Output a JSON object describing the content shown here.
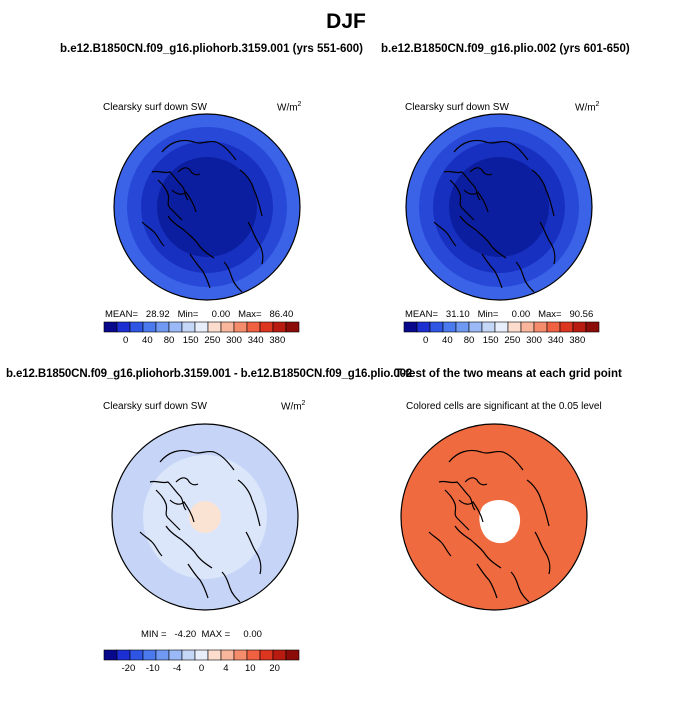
{
  "title": "DJF",
  "panels": [
    {
      "title": "b.e12.B1850CN.f09_g16.pliohorb.3159.001 (yrs 551-600)",
      "variable": "Clearsky surf down SW",
      "units_base": "W/m",
      "units_exp": "2",
      "stats": "MEAN=   28.92   Min=     0.00   Max=   86.40",
      "colorbar_ticks": [
        "0",
        "40",
        "80",
        "150",
        "250",
        "300",
        "340",
        "380"
      ]
    },
    {
      "title": "b.e12.B1850CN.f09_g16.plio.002 (yrs 601-650)",
      "variable": "Clearsky surf down SW",
      "units_base": "W/m",
      "units_exp": "2",
      "stats": "MEAN=   31.10   Min=     0.00   Max=   90.56",
      "colorbar_ticks": [
        "0",
        "40",
        "80",
        "150",
        "250",
        "300",
        "340",
        "380"
      ]
    },
    {
      "title": "b.e12.B1850CN.f09_g16.pliohorb.3159.001 - b.e12.B1850CN.f09_g16.plio.002",
      "variable": "Clearsky surf down SW",
      "units_base": "W/m",
      "units_exp": "2",
      "stats": "MIN =   -4.20  MAX =     0.00",
      "colorbar_ticks": [
        "-20",
        "-10",
        "-4",
        "0",
        "4",
        "10",
        "20"
      ]
    },
    {
      "title": "T-test of the two means at each grid point",
      "variable": "Colored cells are significant at the 0.05 level"
    }
  ],
  "colors": {
    "colorbar_abs": [
      "#08088c",
      "#1c2fd2",
      "#2f55e4",
      "#4b79ee",
      "#7099f4",
      "#9ab9f6",
      "#c4d7f7",
      "#e9eefb",
      "#fbdccd",
      "#f9b69c",
      "#f58d6d",
      "#ef6141",
      "#dc3621",
      "#b81c10",
      "#8c0c0a"
    ],
    "colorbar_diff": [
      "#08088c",
      "#1c2fd2",
      "#2f55e4",
      "#4b79ee",
      "#7099f4",
      "#9ab9f6",
      "#c4d7f7",
      "#e9eefb",
      "#fbdccd",
      "#f9b69c",
      "#f58d6d",
      "#ef6141",
      "#dc3621",
      "#b81c10",
      "#8c0c0a"
    ],
    "ocean_line": "#000000",
    "panel1_rings": [
      "#3a63e8",
      "#2848d8",
      "#1830c0",
      "#0c1ea0"
    ],
    "panel2_rings": [
      "#3a63e8",
      "#2848d8",
      "#1830c0",
      "#0c1ea0"
    ],
    "panel3_rings": [
      "#c6d5f7",
      "#dce6fa",
      "#fbe3d3"
    ],
    "panel4_fill": "#ef6a3e"
  },
  "chart_data": [
    {
      "type": "heatmap",
      "title": "b.e12.B1850CN.f09_g16.pliohorb.3159.001 (yrs 551-600)",
      "variable": "Clearsky surf down SW",
      "units": "W/m2",
      "projection": "north polar stereographic",
      "stats": {
        "mean": 28.92,
        "min": 0.0,
        "max": 86.4
      },
      "colorbar_levels": [
        0,
        40,
        80,
        150,
        250,
        300,
        340,
        380
      ]
    },
    {
      "type": "heatmap",
      "title": "b.e12.B1850CN.f09_g16.plio.002 (yrs 601-650)",
      "variable": "Clearsky surf down SW",
      "units": "W/m2",
      "projection": "north polar stereographic",
      "stats": {
        "mean": 31.1,
        "min": 0.0,
        "max": 90.56
      },
      "colorbar_levels": [
        0,
        40,
        80,
        150,
        250,
        300,
        340,
        380
      ]
    },
    {
      "type": "heatmap",
      "title": "b.e12.B1850CN.f09_g16.pliohorb.3159.001 - b.e12.B1850CN.f09_g16.plio.002",
      "variable": "Clearsky surf down SW",
      "units": "W/m2",
      "projection": "north polar stereographic",
      "stats": {
        "min": -4.2,
        "max": 0.0
      },
      "colorbar_levels": [
        -20,
        -10,
        -4,
        0,
        4,
        10,
        20
      ]
    },
    {
      "type": "heatmap",
      "title": "T-test of the two means at each grid point",
      "note": "Colored cells are significant at the 0.05 level",
      "projection": "north polar stereographic"
    }
  ]
}
